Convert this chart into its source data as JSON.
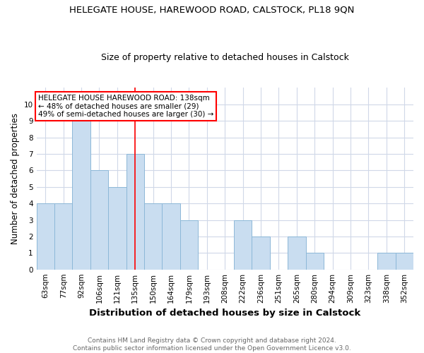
{
  "title": "HELEGATE HOUSE, HAREWOOD ROAD, CALSTOCK, PL18 9QN",
  "subtitle": "Size of property relative to detached houses in Calstock",
  "xlabel": "Distribution of detached houses by size in Calstock",
  "ylabel": "Number of detached properties",
  "categories": [
    "63sqm",
    "77sqm",
    "92sqm",
    "106sqm",
    "121sqm",
    "135sqm",
    "150sqm",
    "164sqm",
    "179sqm",
    "193sqm",
    "208sqm",
    "222sqm",
    "236sqm",
    "251sqm",
    "265sqm",
    "280sqm",
    "294sqm",
    "309sqm",
    "323sqm",
    "338sqm",
    "352sqm"
  ],
  "values": [
    4,
    4,
    9,
    6,
    5,
    7,
    4,
    4,
    3,
    0,
    0,
    3,
    2,
    0,
    2,
    1,
    0,
    0,
    0,
    1,
    1
  ],
  "bar_color": "#c9ddf0",
  "bar_edge_color": "#8db8d8",
  "red_line_index": 5,
  "annotation_text": "HELEGATE HOUSE HAREWOOD ROAD: 138sqm\n← 48% of detached houses are smaller (29)\n49% of semi-detached houses are larger (30) →",
  "annotation_box_color": "white",
  "annotation_box_edge_color": "red",
  "ylim": [
    0,
    11
  ],
  "yticks": [
    0,
    1,
    2,
    3,
    4,
    5,
    6,
    7,
    8,
    9,
    10
  ],
  "grid_color": "#d0d8e8",
  "background_color": "white",
  "footnote": "Contains HM Land Registry data © Crown copyright and database right 2024.\nContains public sector information licensed under the Open Government Licence v3.0.",
  "title_fontsize": 9.5,
  "subtitle_fontsize": 9,
  "xlabel_fontsize": 9.5,
  "ylabel_fontsize": 8.5,
  "tick_fontsize": 7.5,
  "annotation_fontsize": 7.5,
  "footnote_fontsize": 6.5
}
